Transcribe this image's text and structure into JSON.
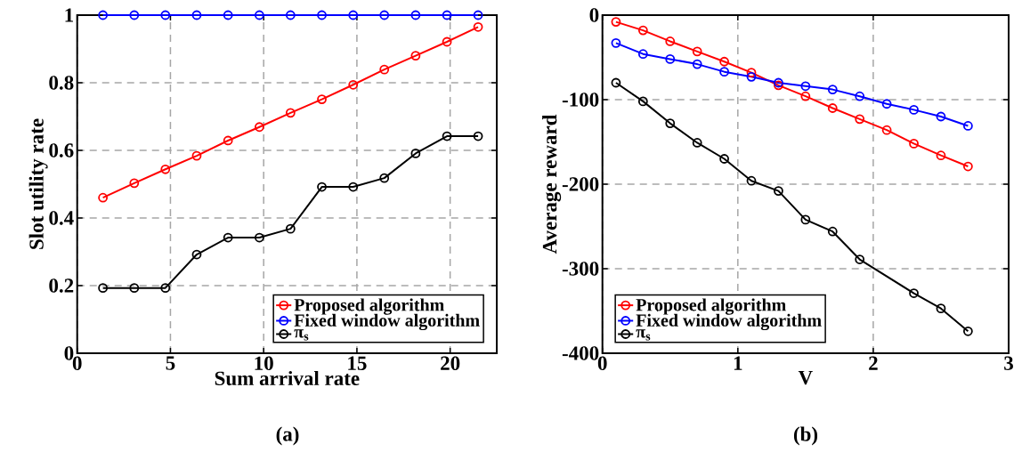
{
  "chart_data": [
    {
      "type": "line",
      "xlabel": "Sum arrival rate",
      "ylabel": "Slot utility rate",
      "annotations": [
        "(a)"
      ],
      "x": [
        1.38,
        3.06,
        4.73,
        6.41,
        8.09,
        9.77,
        11.44,
        13.12,
        14.8,
        16.47,
        18.15,
        19.83,
        21.5
      ],
      "xlim": [
        0,
        22.5
      ],
      "xticks": [
        0,
        5,
        10,
        15,
        20
      ],
      "ylim": [
        0,
        1
      ],
      "yticks": [
        0,
        0.2,
        0.4,
        0.6,
        0.8,
        1
      ],
      "grid": true,
      "legend": "bottom right",
      "marker": "circle",
      "series": [
        {
          "name": "Proposed algorithm",
          "color": "#ff0000",
          "values": [
            0.46,
            0.503,
            0.544,
            0.584,
            0.629,
            0.669,
            0.711,
            0.751,
            0.794,
            0.839,
            0.88,
            0.921,
            0.965
          ]
        },
        {
          "name": "Fixed window algorithm",
          "color": "#0000ff",
          "values": [
            1,
            1,
            1,
            1,
            1,
            1,
            1,
            1,
            1,
            1,
            1,
            1,
            1
          ]
        },
        {
          "name": "π$_{s}$",
          "color": "#000000",
          "values": [
            0.193,
            0.193,
            0.193,
            0.292,
            0.342,
            0.342,
            0.368,
            0.492,
            0.492,
            0.518,
            0.591,
            0.642,
            0.642
          ]
        }
      ]
    },
    {
      "type": "line",
      "xlabel": "V",
      "ylabel": "Average reward",
      "annotations": [
        "(b)"
      ],
      "x": [
        0.1,
        0.3,
        0.5,
        0.7,
        0.9,
        1.1,
        1.3,
        1.5,
        1.7,
        1.9,
        2.1,
        2.3,
        2.5,
        2.7
      ],
      "xlim": [
        0,
        3
      ],
      "xticks": [
        0,
        1,
        2,
        3
      ],
      "ylim": [
        -400,
        0
      ],
      "yticks": [
        -400,
        -300,
        -200,
        -100,
        0
      ],
      "grid": true,
      "legend": "bottom left",
      "marker": "circle",
      "series": [
        {
          "name": "Proposed algorithm",
          "color": "#ff0000",
          "values": [
            -8,
            -18,
            -31,
            -43,
            -55,
            -68,
            -83,
            -96,
            -110,
            -123,
            -136,
            -152,
            -166,
            -179
          ]
        },
        {
          "name": "Fixed window algorithm",
          "color": "#0000ff",
          "values": [
            -33,
            -46,
            -52,
            -58,
            -67,
            -73,
            -80,
            -84,
            -88,
            -96,
            -105,
            -112,
            -120,
            -131
          ]
        },
        {
          "name": "π$_{s}$",
          "color": "#000000",
          "values": [
            -80,
            -102,
            -128,
            -151,
            -170,
            -196,
            -208,
            -242,
            -256,
            -289,
            null,
            -329,
            -347,
            -374
          ]
        }
      ]
    }
  ]
}
